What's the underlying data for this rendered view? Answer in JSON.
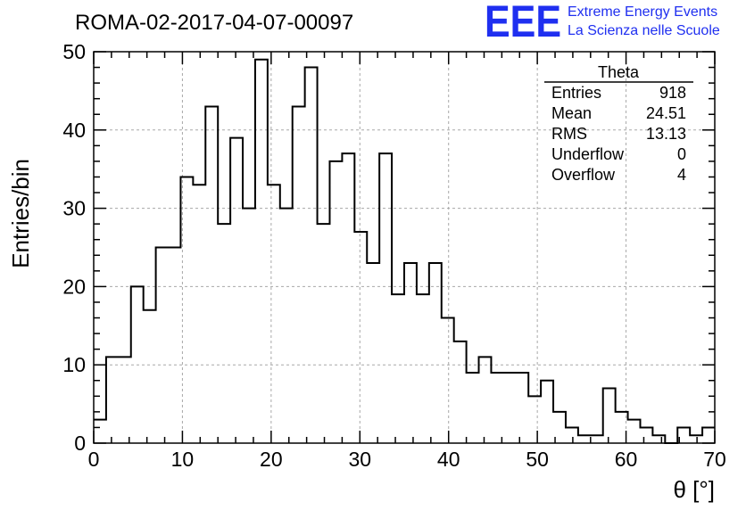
{
  "title": "ROMA-02-2017-04-07-00097",
  "logo": {
    "mark": "EEE",
    "line1": "Extreme Energy Events",
    "line2": "La Scienza nelle Scuole",
    "color": "#1f2ff0"
  },
  "stats": {
    "title": "Theta",
    "rows": [
      {
        "label": "Entries",
        "value": "918"
      },
      {
        "label": "Mean",
        "value": "24.51"
      },
      {
        "label": "RMS",
        "value": "13.13"
      },
      {
        "label": "Underflow",
        "value": "0"
      },
      {
        "label": "Overflow",
        "value": "4"
      }
    ]
  },
  "chart_data": {
    "type": "bar",
    "subtype": "step-histogram",
    "xlabel": "θ [°]",
    "ylabel": "Entries/bin",
    "xlim": [
      0,
      70
    ],
    "ylim": [
      0,
      50
    ],
    "bin_width": 1.4,
    "bin_edges_start": 0,
    "xticks": [
      0,
      10,
      20,
      30,
      40,
      50,
      60,
      70
    ],
    "yticks": [
      0,
      10,
      20,
      30,
      40,
      50
    ],
    "grid": true,
    "values": [
      3,
      11,
      11,
      20,
      17,
      25,
      25,
      34,
      33,
      43,
      28,
      39,
      30,
      49,
      33,
      30,
      43,
      48,
      28,
      36,
      37,
      27,
      23,
      37,
      19,
      23,
      19,
      23,
      16,
      13,
      9,
      11,
      9,
      9,
      9,
      6,
      8,
      4,
      2,
      1,
      1,
      7,
      4,
      3,
      2,
      1,
      0,
      2,
      1,
      2
    ]
  }
}
